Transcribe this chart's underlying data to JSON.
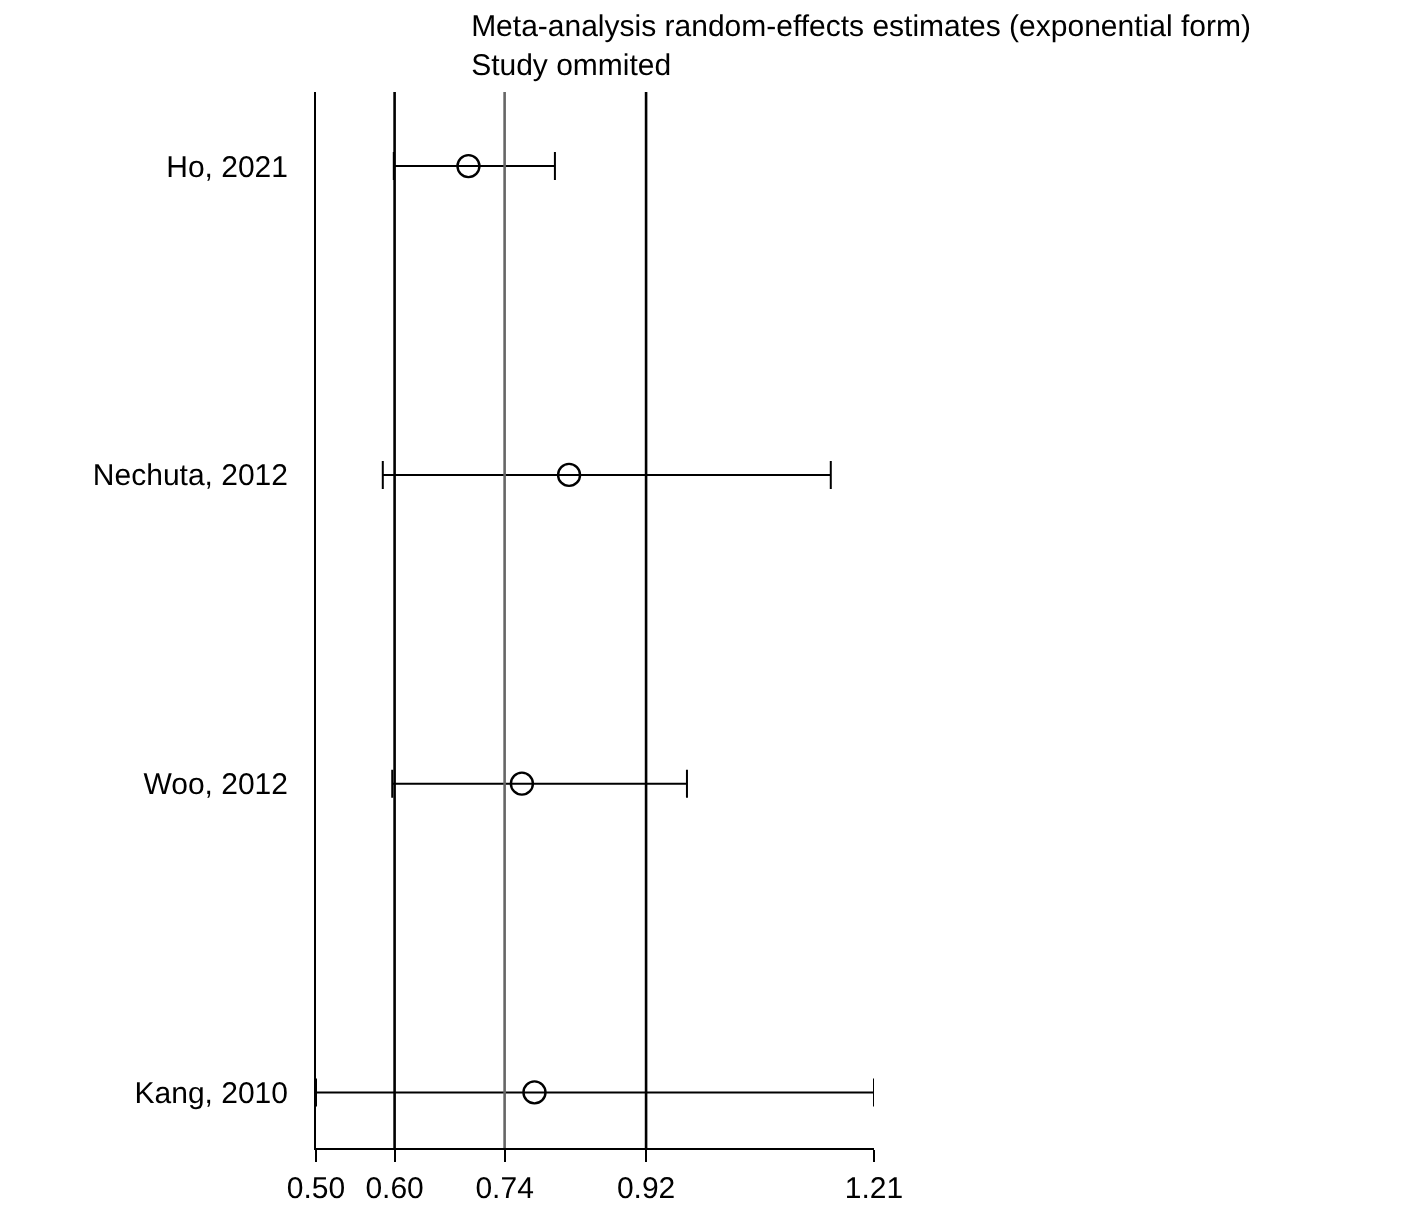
{
  "chart_data": {
    "type": "scatter",
    "orientation": "horizontal",
    "title": "Meta-analysis random-effects estimates (exponential form)",
    "subtitle": "Study ommited",
    "categories": [
      "Ho, 2021",
      "Nechuta, 2012",
      "Woo, 2012",
      "Kang, 2010"
    ],
    "values": [
      0.694,
      0.822,
      0.762,
      0.778
    ],
    "errors": [
      [
        0.599,
        0.804
      ],
      [
        0.585,
        1.155
      ],
      [
        0.597,
        0.972
      ],
      [
        0.5,
        1.21
      ]
    ],
    "color": "#000000",
    "marker": "circle",
    "grid": false,
    "xlim": [
      0.5,
      1.21
    ],
    "xticks": [
      {
        "value": 0.5,
        "label": "0.50"
      },
      {
        "value": 0.6,
        "label": "0.60"
      },
      0.74,
      0.92,
      1.21
    ],
    "ref_lines": [
      {
        "axis": "x",
        "value": 0.6,
        "color": "#000000"
      },
      {
        "axis": "x",
        "value": 0.74,
        "color": "#666666"
      },
      {
        "axis": "x",
        "value": 0.92,
        "color": "#000000"
      }
    ]
  }
}
